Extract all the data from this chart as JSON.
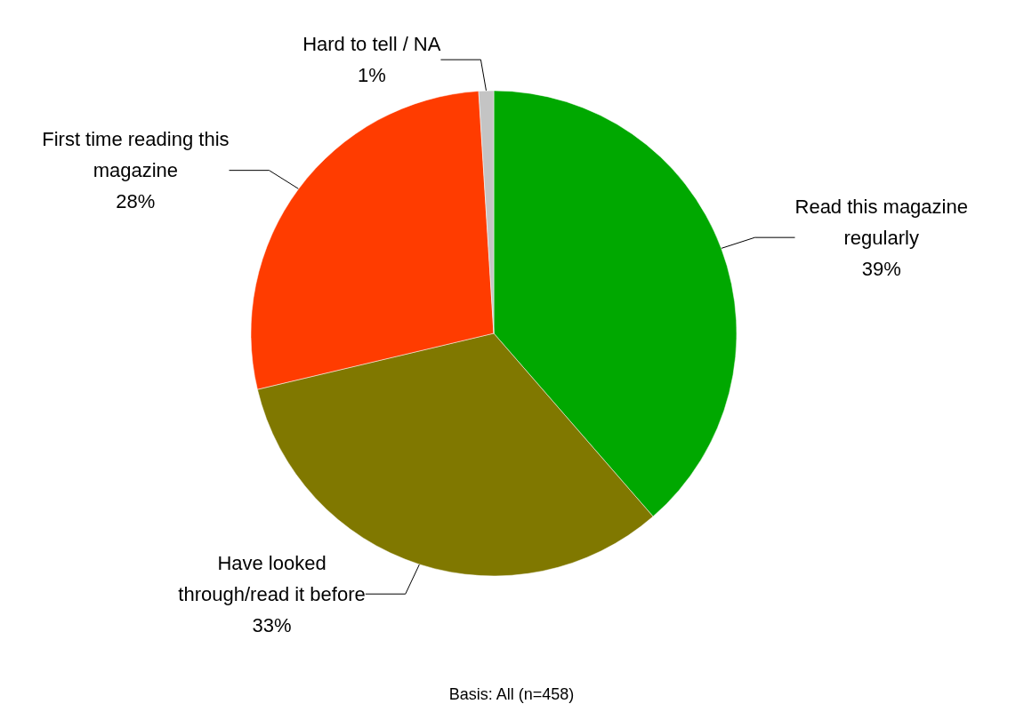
{
  "chart_data": {
    "type": "pie",
    "categories": [
      "Read this magazine regularly",
      "Have looked through/read it before",
      "First time reading this magazine",
      "Hard to tell / NA"
    ],
    "values": [
      39,
      33,
      28,
      1
    ],
    "value_labels": [
      "39%",
      "33%",
      "28%",
      "1%"
    ],
    "colors": [
      "#00a800",
      "#807800",
      "#ff3c00",
      "#c4c4c4"
    ],
    "annotations": [
      "Basis: All (n=458)"
    ]
  }
}
